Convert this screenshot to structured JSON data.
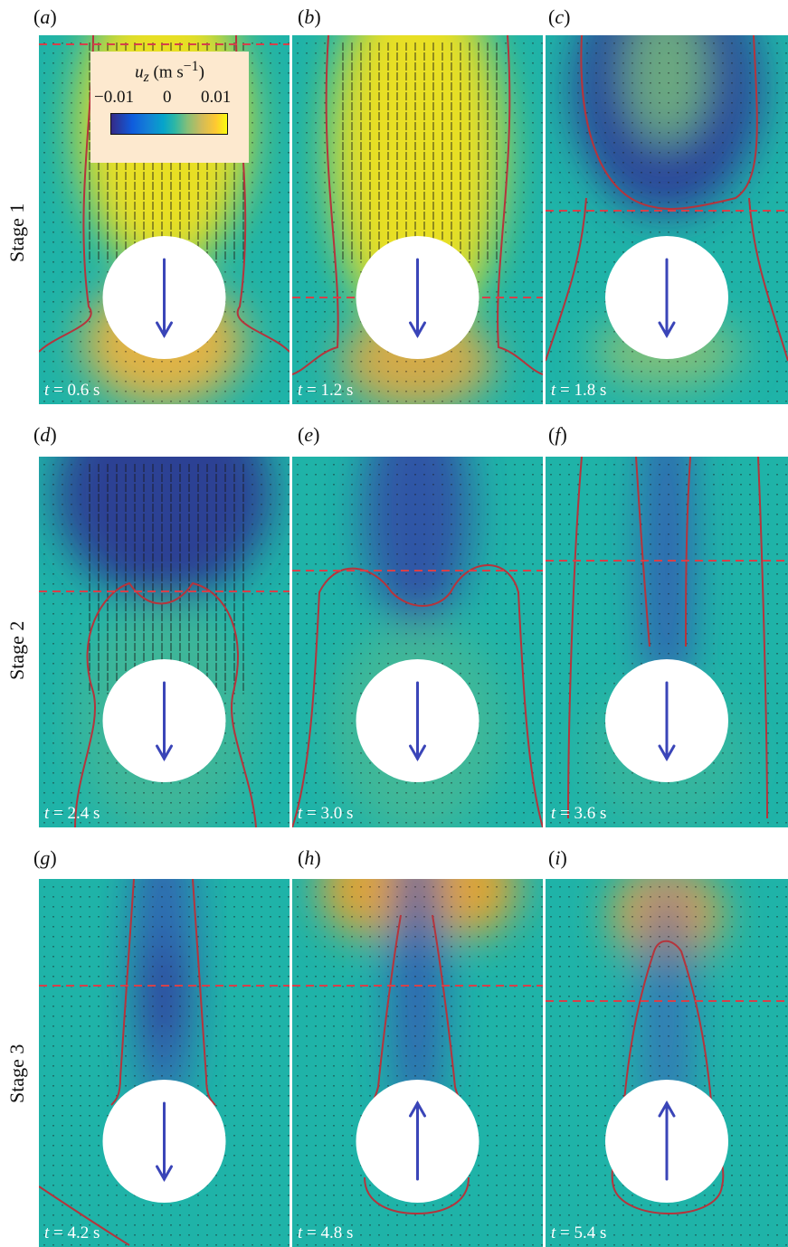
{
  "stages": [
    "Stage 1",
    "Stage 2",
    "Stage 3"
  ],
  "panels": [
    {
      "letter": "a",
      "time": "t = 0.6 s",
      "arrow": "down-arrow-icon"
    },
    {
      "letter": "b",
      "time": "t = 1.2 s",
      "arrow": "down-arrow-icon"
    },
    {
      "letter": "c",
      "time": "t = 1.8 s",
      "arrow": "down-arrow-icon"
    },
    {
      "letter": "d",
      "time": "t = 2.4 s",
      "arrow": "down-arrow-icon"
    },
    {
      "letter": "e",
      "time": "t = 3.0 s",
      "arrow": "down-arrow-icon"
    },
    {
      "letter": "f",
      "time": "t = 3.6 s",
      "arrow": "down-arrow-icon"
    },
    {
      "letter": "g",
      "time": "t = 4.2 s",
      "arrow": "down-arrow-icon"
    },
    {
      "letter": "h",
      "time": "t = 4.8 s",
      "arrow": "up-arrow-icon"
    },
    {
      "letter": "i",
      "time": "t = 5.4 s",
      "arrow": "up-arrow-icon"
    }
  ],
  "colorbar": {
    "quantity": "u",
    "quantity_subscript": "z",
    "unit": " (m s",
    "unit_exponent": "−1",
    "unit_close": ")",
    "ticks": [
      "−0.01",
      "0",
      "0.01"
    ]
  },
  "colors": {
    "background": "#1fb3a8",
    "contour": "#b5343c",
    "dashed_line": "#d6404a",
    "sphere": "#ffffff",
    "arrow": "#3a45b8",
    "vector": "#1a1a1a"
  }
}
